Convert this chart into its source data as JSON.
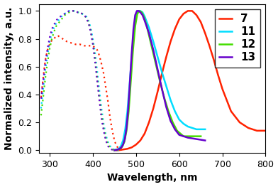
{
  "title": "",
  "xlabel": "Wavelength, nm",
  "ylabel": "Normalized intensity, a.u.",
  "xlim": [
    275,
    800
  ],
  "ylim": [
    -0.02,
    1.05
  ],
  "xticks": [
    300,
    400,
    500,
    600,
    700,
    800
  ],
  "yticks": [
    0.0,
    0.2,
    0.4,
    0.6,
    0.8,
    1.0
  ],
  "series": [
    {
      "label": "7",
      "color": "#ff2200",
      "excitation": {
        "x": [
          280,
          285,
          290,
          295,
          300,
          305,
          310,
          315,
          320,
          325,
          330,
          335,
          340,
          350,
          360,
          370,
          380,
          390,
          400,
          410,
          415,
          420,
          425,
          430,
          435,
          440,
          445,
          450,
          455,
          460,
          465,
          470
        ],
        "y": [
          0.38,
          0.52,
          0.65,
          0.72,
          0.76,
          0.79,
          0.8,
          0.82,
          0.82,
          0.81,
          0.8,
          0.79,
          0.78,
          0.77,
          0.76,
          0.76,
          0.75,
          0.75,
          0.75,
          0.72,
          0.68,
          0.62,
          0.55,
          0.45,
          0.35,
          0.23,
          0.14,
          0.07,
          0.03,
          0.01,
          0.005,
          0.0
        ]
      },
      "emission": {
        "x": [
          450,
          460,
          470,
          480,
          490,
          500,
          510,
          520,
          530,
          540,
          550,
          560,
          570,
          580,
          590,
          600,
          610,
          620,
          630,
          640,
          650,
          660,
          670,
          680,
          690,
          700,
          720,
          740,
          760,
          780,
          800
        ],
        "y": [
          0.0,
          0.0,
          0.005,
          0.01,
          0.02,
          0.04,
          0.07,
          0.12,
          0.2,
          0.3,
          0.42,
          0.55,
          0.67,
          0.78,
          0.87,
          0.94,
          0.98,
          1.0,
          1.0,
          0.97,
          0.92,
          0.84,
          0.75,
          0.65,
          0.54,
          0.44,
          0.28,
          0.2,
          0.16,
          0.14,
          0.14
        ]
      }
    },
    {
      "label": "11",
      "color": "#00ddff",
      "excitation": {
        "x": [
          280,
          285,
          290,
          295,
          300,
          305,
          310,
          315,
          320,
          325,
          330,
          335,
          340,
          345,
          350,
          355,
          360,
          365,
          370,
          375,
          380,
          385,
          390,
          395,
          400,
          405,
          410,
          415,
          420,
          425,
          430,
          435,
          440,
          445,
          450,
          455,
          460
        ],
        "y": [
          0.3,
          0.44,
          0.58,
          0.68,
          0.78,
          0.84,
          0.88,
          0.91,
          0.93,
          0.95,
          0.97,
          0.98,
          0.99,
          1.0,
          1.0,
          1.0,
          1.0,
          0.99,
          0.99,
          0.98,
          0.97,
          0.96,
          0.93,
          0.88,
          0.8,
          0.7,
          0.57,
          0.43,
          0.3,
          0.19,
          0.11,
          0.06,
          0.03,
          0.01,
          0.005,
          0.001,
          0.0
        ]
      },
      "emission": {
        "x": [
          450,
          460,
          465,
          470,
          475,
          480,
          485,
          490,
          495,
          500,
          505,
          510,
          515,
          520,
          530,
          540,
          550,
          560,
          570,
          580,
          590,
          600,
          610,
          620,
          630,
          640,
          650,
          660
        ],
        "y": [
          0.0,
          0.01,
          0.03,
          0.07,
          0.15,
          0.28,
          0.47,
          0.67,
          0.84,
          0.96,
          1.0,
          1.0,
          0.99,
          0.96,
          0.88,
          0.78,
          0.67,
          0.56,
          0.46,
          0.36,
          0.28,
          0.22,
          0.19,
          0.17,
          0.16,
          0.15,
          0.15,
          0.15
        ]
      }
    },
    {
      "label": "12",
      "color": "#44dd00",
      "excitation": {
        "x": [
          280,
          285,
          290,
          295,
          300,
          305,
          310,
          315,
          320,
          325,
          330,
          335,
          340,
          345,
          350,
          355,
          360,
          365,
          370,
          375,
          380,
          385,
          390,
          395,
          400,
          405,
          410,
          415,
          420,
          425,
          430,
          435,
          440,
          445,
          450,
          455,
          460
        ],
        "y": [
          0.25,
          0.38,
          0.52,
          0.63,
          0.73,
          0.8,
          0.85,
          0.89,
          0.91,
          0.93,
          0.95,
          0.97,
          0.98,
          0.99,
          1.0,
          1.0,
          1.0,
          0.99,
          0.99,
          0.98,
          0.97,
          0.95,
          0.92,
          0.86,
          0.77,
          0.66,
          0.52,
          0.38,
          0.26,
          0.16,
          0.09,
          0.04,
          0.02,
          0.006,
          0.002,
          0.0,
          0.0
        ]
      },
      "emission": {
        "x": [
          450,
          458,
          463,
          468,
          473,
          478,
          483,
          488,
          493,
          498,
          503,
          508,
          513,
          518,
          525,
          535,
          545,
          555,
          565,
          575,
          585,
          595,
          610,
          630,
          650
        ],
        "y": [
          0.0,
          0.005,
          0.01,
          0.025,
          0.06,
          0.14,
          0.28,
          0.5,
          0.72,
          0.89,
          0.98,
          1.0,
          0.99,
          0.96,
          0.89,
          0.76,
          0.63,
          0.5,
          0.38,
          0.28,
          0.2,
          0.14,
          0.1,
          0.1,
          0.1
        ]
      }
    },
    {
      "label": "13",
      "color": "#6600cc",
      "excitation": {
        "x": [
          280,
          285,
          290,
          295,
          300,
          305,
          310,
          315,
          320,
          325,
          330,
          335,
          340,
          345,
          350,
          355,
          360,
          365,
          370,
          375,
          380,
          385,
          390,
          395,
          400,
          405,
          410,
          415,
          420,
          425,
          430,
          435,
          440,
          445,
          450,
          455,
          460
        ],
        "y": [
          0.37,
          0.5,
          0.63,
          0.73,
          0.81,
          0.87,
          0.9,
          0.93,
          0.95,
          0.96,
          0.97,
          0.98,
          0.99,
          1.0,
          1.0,
          1.0,
          1.0,
          0.99,
          0.99,
          0.98,
          0.97,
          0.95,
          0.91,
          0.85,
          0.76,
          0.64,
          0.5,
          0.36,
          0.23,
          0.14,
          0.07,
          0.03,
          0.01,
          0.003,
          0.001,
          0.0,
          0.0
        ]
      },
      "emission": {
        "x": [
          450,
          458,
          462,
          466,
          470,
          474,
          478,
          482,
          486,
          490,
          494,
          498,
          502,
          506,
          510,
          515,
          520,
          530,
          540,
          550,
          560,
          570,
          580,
          590,
          600,
          620,
          640,
          660
        ],
        "y": [
          0.0,
          0.005,
          0.01,
          0.02,
          0.04,
          0.08,
          0.16,
          0.3,
          0.5,
          0.7,
          0.87,
          0.97,
          1.0,
          1.0,
          0.99,
          0.97,
          0.93,
          0.84,
          0.72,
          0.58,
          0.44,
          0.31,
          0.21,
          0.15,
          0.11,
          0.09,
          0.08,
          0.07
        ]
      }
    }
  ],
  "legend_fontsize": 11,
  "axis_fontsize": 10,
  "tick_fontsize": 9
}
